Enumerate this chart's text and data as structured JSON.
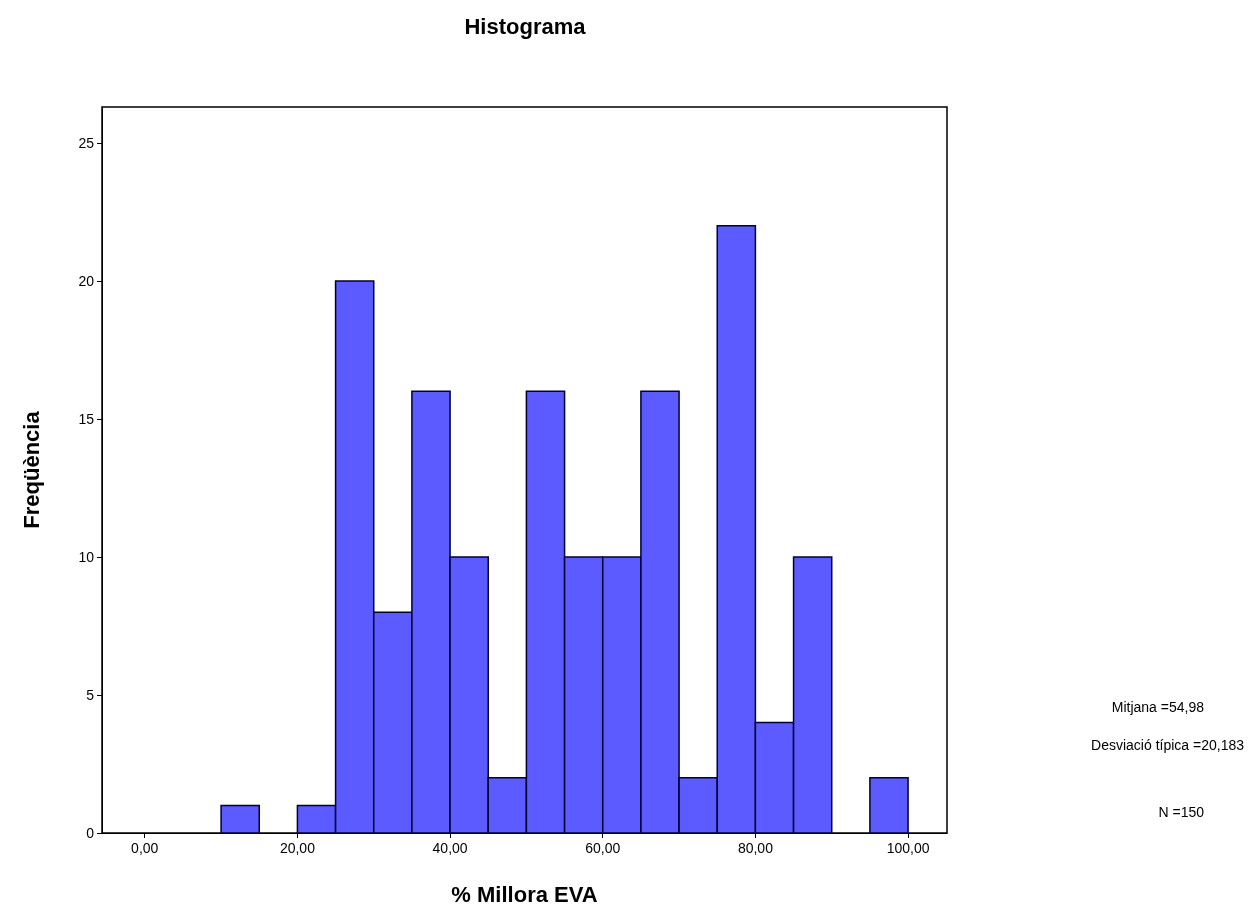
{
  "chart_data": {
    "type": "histogram",
    "title": "Histograma",
    "xlabel": "% Millora EVA",
    "ylabel": "Freqüència",
    "bins": [
      10,
      15,
      20,
      25,
      30,
      35,
      40,
      45,
      50,
      55,
      60,
      65,
      70,
      75,
      80,
      85,
      90,
      95,
      100
    ],
    "values": [
      1,
      0,
      1,
      20,
      8,
      16,
      10,
      2,
      16,
      10,
      10,
      16,
      2,
      22,
      4,
      10,
      0,
      2
    ],
    "color": "#5b5bff",
    "xlim": [
      -5.6,
      105.1
    ],
    "ylim": [
      0,
      26.3
    ],
    "xticks": [
      {
        "value": 0,
        "label": "0,00"
      },
      {
        "value": 20,
        "label": "20,00"
      },
      {
        "value": 40,
        "label": "40,00"
      },
      {
        "value": 60,
        "label": "60,00"
      },
      {
        "value": 80,
        "label": "80,00"
      },
      {
        "value": 100,
        "label": "100,00"
      }
    ],
    "yticks": [
      0,
      5,
      10,
      15,
      20,
      25
    ],
    "grid": false,
    "annotations": [
      "Mitjana =54,98",
      "Desviació típica =20,183",
      "N =150"
    ]
  }
}
